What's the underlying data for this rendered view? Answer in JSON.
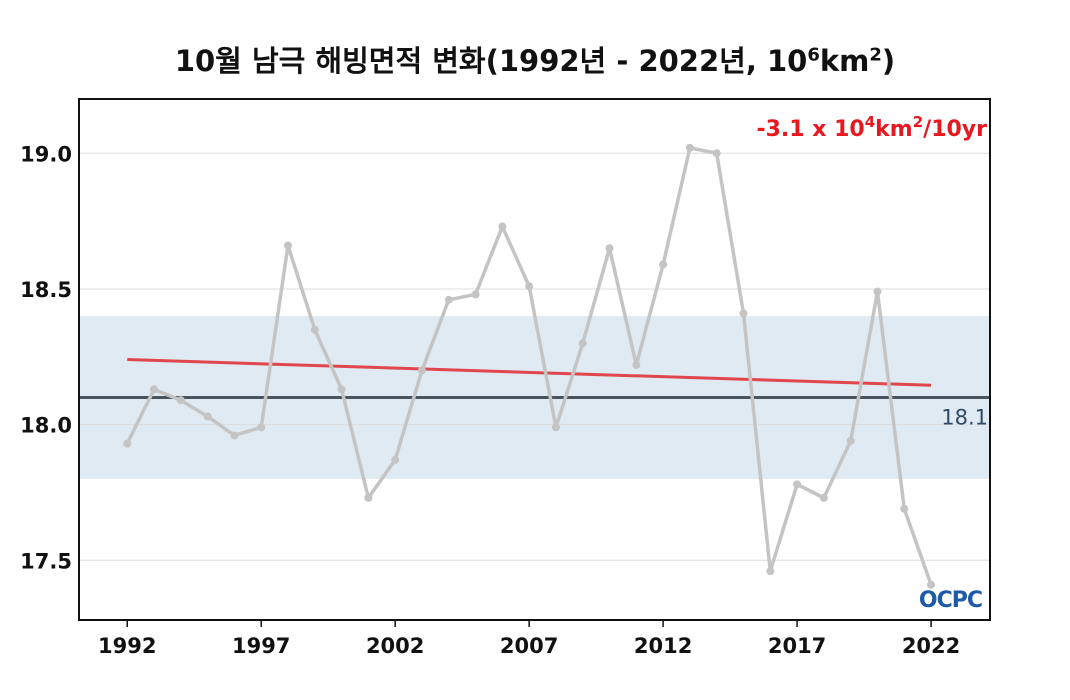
{
  "chart_data": {
    "type": "line",
    "title": {
      "prefix": "10월 남극 해빙면적 변화(1992년 - 2022년, 10",
      "sup1": "6",
      "mid": "km",
      "sup2": "2",
      "suffix": ")"
    },
    "x": [
      1992,
      1993,
      1994,
      1995,
      1996,
      1997,
      1998,
      1999,
      2000,
      2001,
      2002,
      2003,
      2004,
      2005,
      2006,
      2007,
      2008,
      2009,
      2010,
      2011,
      2012,
      2013,
      2014,
      2015,
      2016,
      2017,
      2018,
      2019,
      2020,
      2021,
      2022
    ],
    "series": [
      {
        "values": [
          17.93,
          18.13,
          18.09,
          18.03,
          17.96,
          17.99,
          18.66,
          18.35,
          18.13,
          17.73,
          17.87,
          18.2,
          18.46,
          18.48,
          18.73,
          18.51,
          17.99,
          18.3,
          18.65,
          18.22,
          18.59,
          19.02,
          19.0,
          18.41,
          17.46,
          17.78,
          17.73,
          17.94,
          18.49,
          17.69,
          17.41
        ],
        "color": "#c4c4c4"
      }
    ],
    "x_ticks": [
      "1992",
      "1997",
      "2002",
      "2007",
      "2012",
      "2017",
      "2022"
    ],
    "y_ticks": [
      "17.5",
      "18.0",
      "18.5",
      "19.0"
    ],
    "xlim": [
      1990.2,
      2024.2
    ],
    "ylim": [
      17.28,
      19.2
    ],
    "mean": {
      "value": 18.1,
      "label": "18.1",
      "color": "#4a545e"
    },
    "std_band": {
      "low": 17.8,
      "high": 18.4,
      "color": "#e0eaf3"
    },
    "trend": {
      "start": {
        "x": 1992,
        "y": 18.24
      },
      "end": {
        "x": 2022,
        "y": 18.145
      },
      "color": "#e0474c",
      "label_parts": [
        "-3.1 x 10",
        "4",
        "km",
        "2",
        "/10yr"
      ]
    },
    "grid": true,
    "logo": "OCPC"
  }
}
